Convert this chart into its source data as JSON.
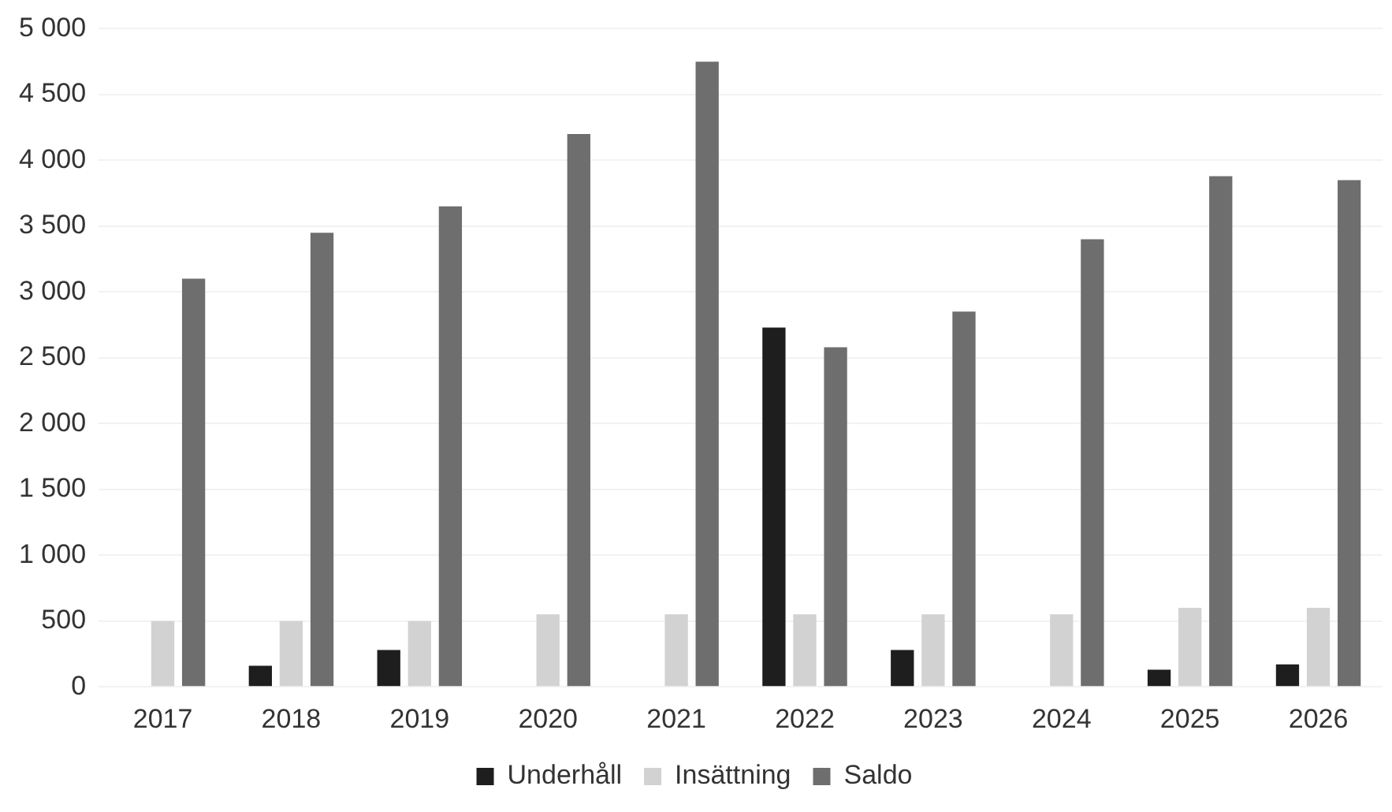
{
  "chart_data": {
    "type": "bar",
    "categories": [
      "2017",
      "2018",
      "2019",
      "2020",
      "2021",
      "2022",
      "2023",
      "2024",
      "2025",
      "2026"
    ],
    "series": [
      {
        "name": "Underhåll",
        "color": "#1e1e1e",
        "values": [
          0,
          160,
          280,
          0,
          0,
          2730,
          280,
          0,
          130,
          170
        ]
      },
      {
        "name": "Insättning",
        "color": "#d2d2d2",
        "values": [
          500,
          500,
          500,
          550,
          550,
          550,
          550,
          550,
          600,
          600
        ]
      },
      {
        "name": "Saldo",
        "color": "#6e6e6e",
        "values": [
          3100,
          3450,
          3650,
          4200,
          4750,
          2580,
          2850,
          3400,
          3880,
          3850
        ]
      }
    ],
    "ylim": [
      0,
      5000
    ],
    "yticks": [
      {
        "value": 0,
        "label": "0"
      },
      {
        "value": 500,
        "label": "500"
      },
      {
        "value": 1000,
        "label": "1 000"
      },
      {
        "value": 1500,
        "label": "1 500"
      },
      {
        "value": 2000,
        "label": "2 000"
      },
      {
        "value": 2500,
        "label": "2 500"
      },
      {
        "value": 3000,
        "label": "3 000"
      },
      {
        "value": 3500,
        "label": "3 500"
      },
      {
        "value": 4000,
        "label": "4 000"
      },
      {
        "value": 4500,
        "label": "4 500"
      },
      {
        "value": 5000,
        "label": "5 000"
      }
    ],
    "grid": "y",
    "legend": "bottom"
  }
}
